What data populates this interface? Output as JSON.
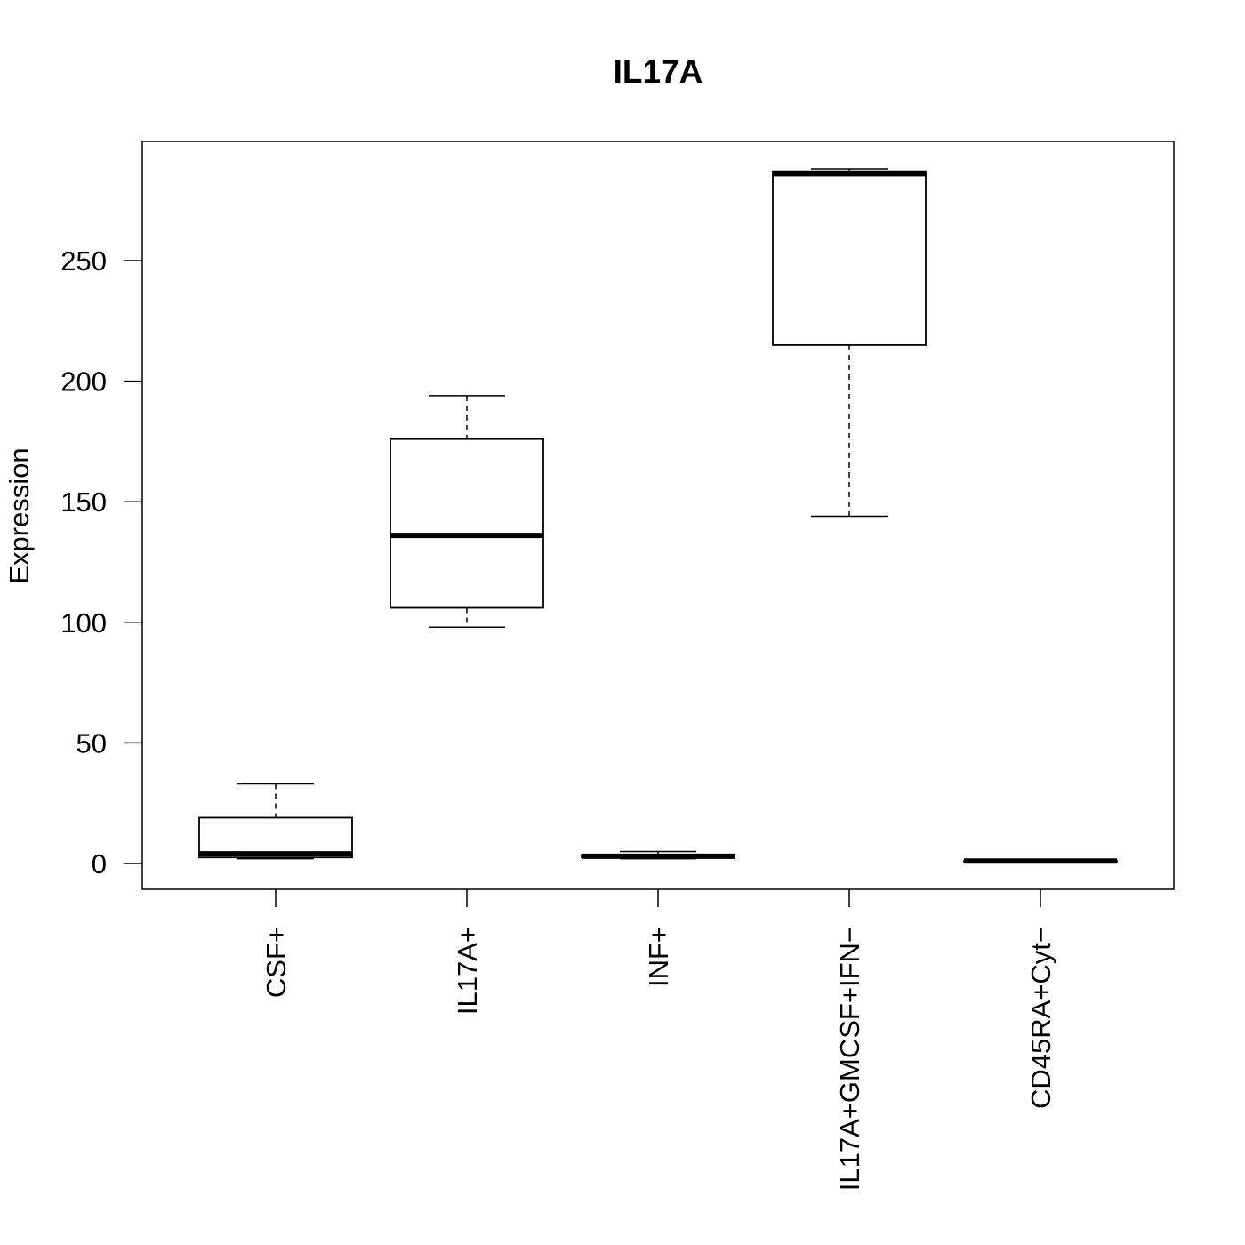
{
  "chart_data": {
    "type": "boxplot",
    "title": "IL17A",
    "xlabel": "",
    "ylabel": "Expression",
    "ylim": [
      -11,
      300
    ],
    "yticks": [
      0,
      50,
      100,
      150,
      200,
      250
    ],
    "grid": false,
    "categories": [
      "CSF+",
      "IL17A+",
      "INF+",
      "IL17A+GMCSF+IFN−",
      "CD45RA+Cyt−"
    ],
    "boxes": [
      {
        "category": "CSF+",
        "min": 2,
        "q1": 2.5,
        "median": 4,
        "q3": 19,
        "max": 33
      },
      {
        "category": "IL17A+",
        "min": 98,
        "q1": 106,
        "median": 136,
        "q3": 176,
        "max": 194
      },
      {
        "category": "INF+",
        "min": 2,
        "q1": 2.5,
        "median": 3,
        "q3": 3.5,
        "max": 5
      },
      {
        "category": "IL17A+GMCSF+IFN−",
        "min": 144,
        "q1": 215,
        "median": 286,
        "q3": 287,
        "max": 288
      },
      {
        "category": "CD45RA+Cyt−",
        "min": 1,
        "q1": 1,
        "median": 1,
        "q3": 1,
        "max": 1
      }
    ]
  }
}
